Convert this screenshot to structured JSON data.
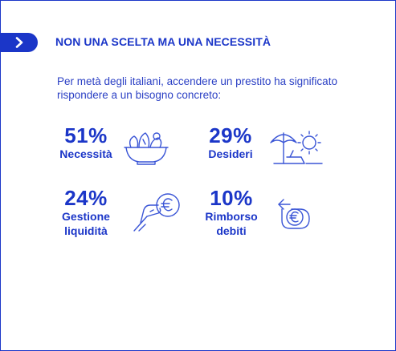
{
  "header": {
    "badge_icon": "chevron-right-icon",
    "title": "NON UNA SCELTA MA UNA NECESSITÀ"
  },
  "intro": "Per metà degli italiani, accendere un prestito ha significato rispondere a un bisogno concreto:",
  "stats": [
    {
      "value": "51%",
      "label_line1": "Necessità",
      "label_line2": "",
      "icon": "salad-bowl-icon"
    },
    {
      "value": "29%",
      "label_line1": "Desideri",
      "label_line2": "",
      "icon": "beach-umbrella-sun-icon"
    },
    {
      "value": "24%",
      "label_line1": "Gestione",
      "label_line2": "liquidità",
      "icon": "hand-euro-coin-icon"
    },
    {
      "value": "10%",
      "label_line1": "Rimborso",
      "label_line2": "debiti",
      "icon": "euro-return-icon"
    }
  ],
  "colors": {
    "accent": "#1b36c8",
    "icon_stroke": "#3a55d6",
    "background": "#ffffff"
  }
}
